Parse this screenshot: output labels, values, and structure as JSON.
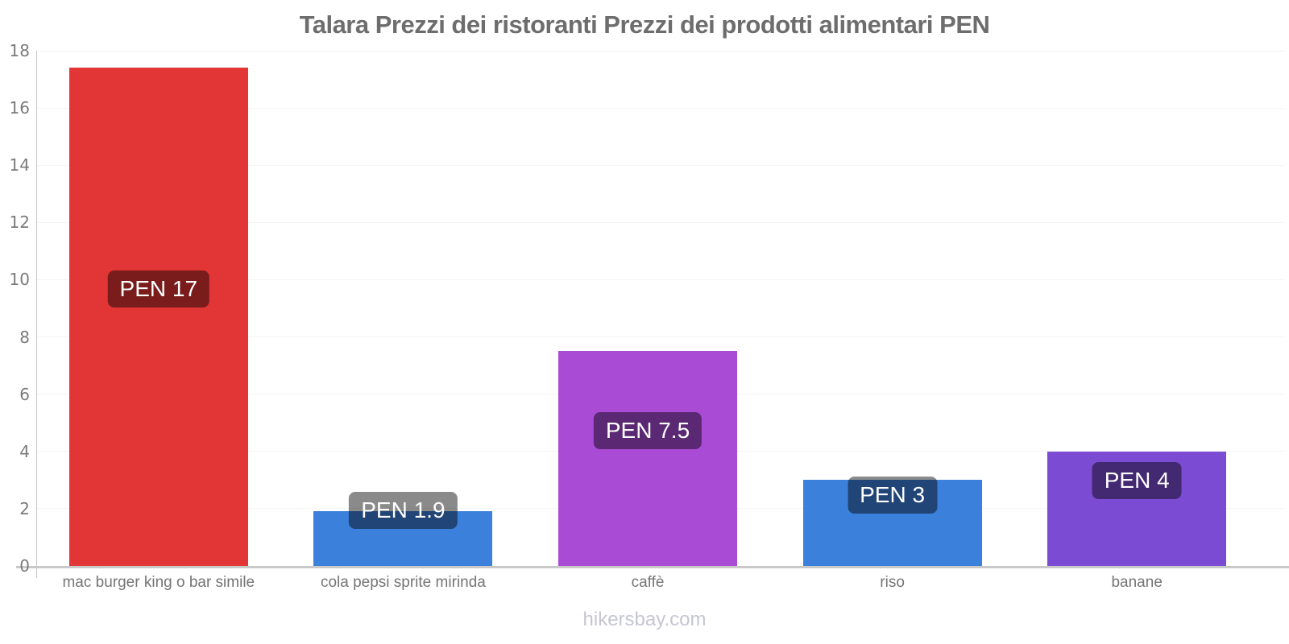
{
  "title": "Talara Prezzi dei ristoranti Prezzi dei prodotti alimentari PEN",
  "footer": "hikersbay.com",
  "chart_data": {
    "type": "bar",
    "title": "Talara Prezzi dei ristoranti Prezzi dei prodotti alimentari PEN",
    "categories": [
      "mac burger king o bar simile",
      "cola pepsi sprite mirinda",
      "caffè",
      "riso",
      "banane"
    ],
    "values": [
      17.4,
      1.9,
      7.5,
      3,
      4
    ],
    "bar_labels": [
      "PEN 17",
      "PEN 1.9",
      "PEN 7.5",
      "PEN 3",
      "PEN 4"
    ],
    "bar_colors": [
      "#e23535",
      "#3b80db",
      "#a94bd4",
      "#3b80db",
      "#7c4bd3"
    ],
    "currency": "PEN",
    "xlabel": "",
    "ylabel": "",
    "ylim": [
      0,
      18
    ],
    "yticks": [
      0,
      2,
      4,
      6,
      8,
      10,
      12,
      14,
      16,
      18
    ],
    "grid": true,
    "legend_position": "none",
    "watermark": "hikersbay.com"
  }
}
